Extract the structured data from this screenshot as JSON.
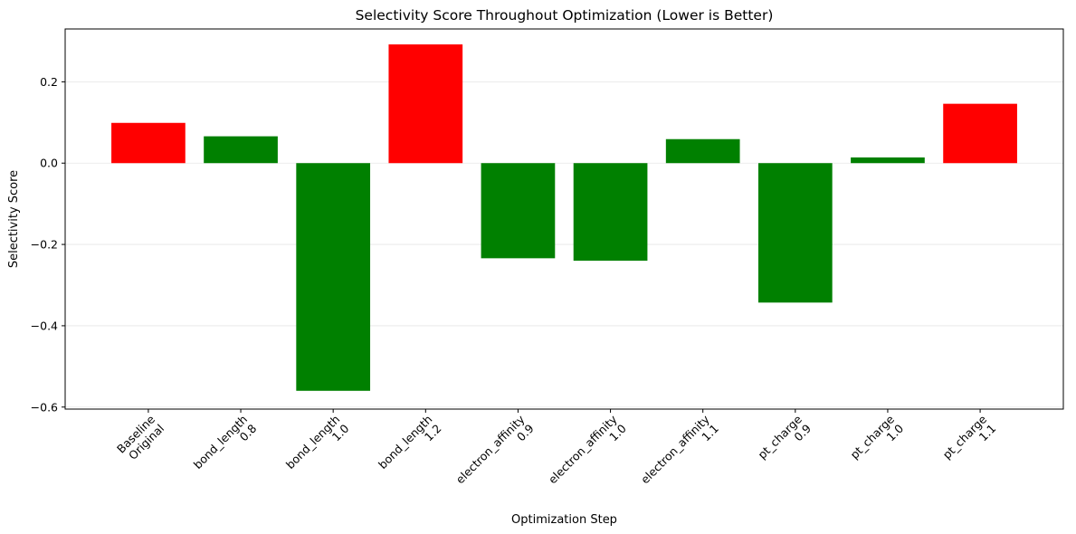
{
  "chart_data": {
    "type": "bar",
    "title": "Selectivity Score Throughout Optimization (Lower is Better)",
    "xlabel": "Optimization Step",
    "ylabel": "Selectivity Score",
    "ylim": [
      -0.605,
      0.33
    ],
    "yticks": [
      -0.6,
      -0.4,
      -0.2,
      0.0,
      0.2
    ],
    "ytick_labels": [
      "−0.6",
      "−0.4",
      "−0.2",
      "0.0",
      "0.2"
    ],
    "grid": "horizontal",
    "categories": [
      [
        "Baseline",
        "Original"
      ],
      [
        "bond_length",
        "0.8"
      ],
      [
        "bond_length",
        "1.0"
      ],
      [
        "bond_length",
        "1.2"
      ],
      [
        "electron_affinity",
        "0.9"
      ],
      [
        "electron_affinity",
        "1.0"
      ],
      [
        "electron_affinity",
        "1.1"
      ],
      [
        "pt_charge",
        "0.9"
      ],
      [
        "pt_charge",
        "1.0"
      ],
      [
        "pt_charge",
        "1.1"
      ]
    ],
    "values": [
      0.099,
      0.066,
      -0.56,
      0.292,
      -0.234,
      -0.24,
      0.059,
      -0.343,
      0.014,
      0.146
    ],
    "bar_colors": [
      "#ff0000",
      "#008000",
      "#008000",
      "#ff0000",
      "#008000",
      "#008000",
      "#008000",
      "#008000",
      "#008000",
      "#ff0000"
    ]
  }
}
